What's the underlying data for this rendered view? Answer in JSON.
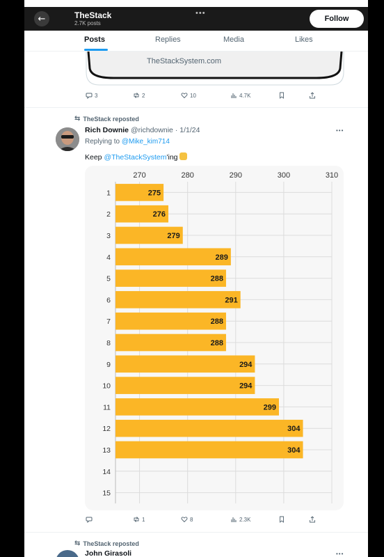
{
  "header": {
    "title": "TheStack",
    "subtitle": "2.7K posts",
    "follow_label": "Follow"
  },
  "tabs": [
    {
      "label": "Posts",
      "active": true
    },
    {
      "label": "Replies",
      "active": false
    },
    {
      "label": "Media",
      "active": false
    },
    {
      "label": "Likes",
      "active": false
    }
  ],
  "prev_post": {
    "card_link": "TheStackSystem.com",
    "stats": {
      "replies": "3",
      "reposts": "2",
      "likes": "10",
      "views": "4.7K"
    }
  },
  "post": {
    "repost_label": "TheStack reposted",
    "author_name": "Rich Downie",
    "author_handle": "@richdownie",
    "date": "· 1/1/24",
    "replying_prefix": "Replying to ",
    "replying_to": "@Mike_kim714",
    "text_prefix": "Keep ",
    "text_mention": "@TheStackSystem",
    "text_suffix": "'ing",
    "stats": {
      "replies": "",
      "reposts": "1",
      "likes": "8",
      "views": "2.3K"
    }
  },
  "next_post": {
    "repost_label": "TheStack reposted",
    "author_name": "John Girasoli"
  },
  "colors": {
    "bar": "#fbb626",
    "accent": "#1d9bf0",
    "panel": "#f7f7f7"
  },
  "chart_data": {
    "type": "bar",
    "orientation": "horizontal",
    "categories": [
      "1",
      "2",
      "3",
      "4",
      "5",
      "6",
      "7",
      "8",
      "9",
      "10",
      "11",
      "12",
      "13",
      "14",
      "15"
    ],
    "values": [
      275,
      276,
      279,
      289,
      288,
      291,
      288,
      288,
      294,
      294,
      299,
      304,
      304,
      null,
      null
    ],
    "xlim": [
      265,
      310
    ],
    "x_ticks": [
      270,
      280,
      290,
      300,
      310
    ],
    "x_axis_position": "top",
    "grid": true,
    "data_labels": true
  }
}
